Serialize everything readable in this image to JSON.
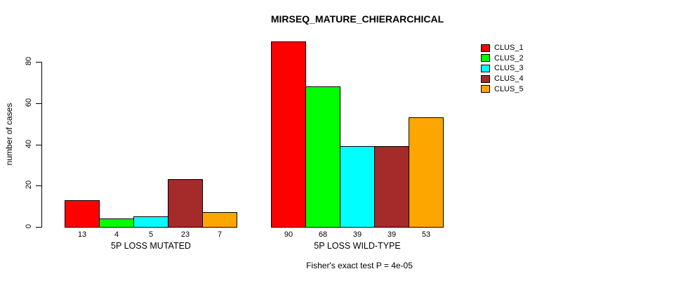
{
  "chart_data": {
    "type": "bar",
    "title": "MIRSEQ_MATURE_CHIERARCHICAL",
    "ylabel": "number of cases",
    "ylim": [
      0,
      90
    ],
    "yticks": [
      0,
      20,
      40,
      60,
      80
    ],
    "grid": false,
    "legend_position": "right-outside",
    "categories": [
      "5P LOSS MUTATED",
      "5P LOSS WILD-TYPE"
    ],
    "groups": [
      {
        "label": "5P LOSS MUTATED",
        "values": [
          13,
          4,
          5,
          23,
          7
        ]
      },
      {
        "label": "5P LOSS WILD-TYPE",
        "values": [
          90,
          68,
          39,
          39,
          53
        ]
      }
    ],
    "series": [
      {
        "name": "CLUS_1",
        "color": "#FF0000"
      },
      {
        "name": "CLUS_2",
        "color": "#00FF00"
      },
      {
        "name": "CLUS_3",
        "color": "#00FFFF"
      },
      {
        "name": "CLUS_4",
        "color": "#A52A2A"
      },
      {
        "name": "CLUS_5",
        "color": "#FFA500"
      }
    ],
    "footnote": "Fisher's exact test P = 4e-05"
  }
}
